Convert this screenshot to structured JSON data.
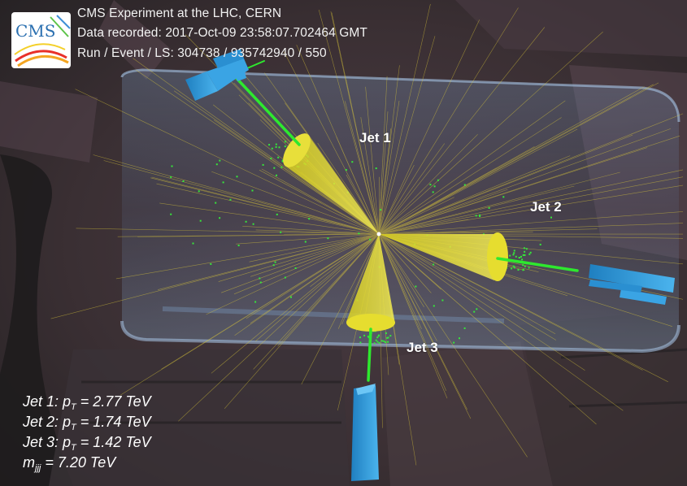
{
  "header": {
    "experiment": "CMS Experiment at the LHC, CERN",
    "recorded": "Data recorded: 2017-Oct-09 23:58:07.702464 GMT",
    "run_event": "Run / Event / LS: 304738 / 935742940 / 550"
  },
  "logo": {
    "text": "CMS",
    "icon": "cms-logo-icon"
  },
  "jets": [
    {
      "label": "Jet 1"
    },
    {
      "label": "Jet 2"
    },
    {
      "label": "Jet 3"
    }
  ],
  "summary": [
    {
      "prefix": "Jet 1: p",
      "sub": "T",
      "suffix": " = 2.77 TeV"
    },
    {
      "prefix": "Jet 2: p",
      "sub": "T",
      "suffix": " = 1.74 TeV"
    },
    {
      "prefix": "Jet 3: p",
      "sub": "T",
      "suffix": " = 1.42 TeV"
    },
    {
      "prefix": "m",
      "sub": "jjj",
      "suffix": " = 7.20 TeV"
    }
  ],
  "colors": {
    "jet_cone": "#e6dc2a",
    "track": "#2ee82e",
    "muon_chamber": "#2f9ee0",
    "background": "#2a2426"
  }
}
